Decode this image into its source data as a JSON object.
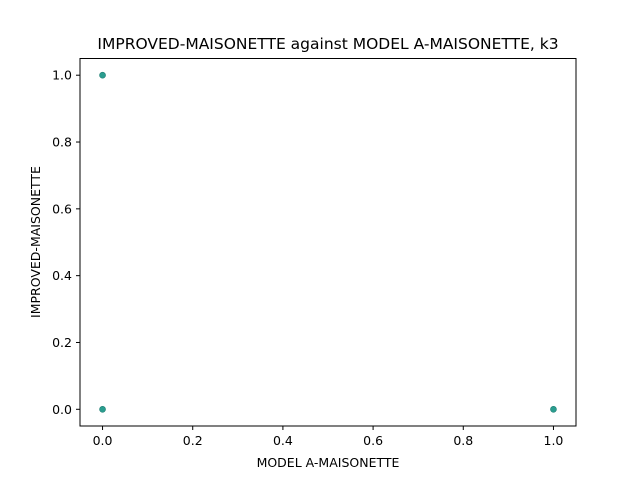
{
  "chart_data": {
    "type": "scatter",
    "title": "IMPROVED-MAISONETTE against MODEL A-MAISONETTE, k3",
    "xlabel": "MODEL A-MAISONETTE",
    "ylabel": "IMPROVED-MAISONETTE",
    "xlim": [
      -0.05,
      1.05
    ],
    "ylim": [
      -0.05,
      1.05
    ],
    "xticks": [
      0.0,
      0.2,
      0.4,
      0.6,
      0.8,
      1.0
    ],
    "yticks": [
      0.0,
      0.2,
      0.4,
      0.6,
      0.8,
      1.0
    ],
    "xtick_labels": [
      "0.0",
      "0.2",
      "0.4",
      "0.6",
      "0.8",
      "1.0"
    ],
    "ytick_labels": [
      "0.0",
      "0.2",
      "0.4",
      "0.6",
      "0.8",
      "1.0"
    ],
    "grid": false,
    "marker_color": "#2a9d8f",
    "points": [
      {
        "x": 0.0,
        "y": 1.0
      },
      {
        "x": 0.0,
        "y": 0.0
      },
      {
        "x": 1.0,
        "y": 0.0
      }
    ]
  }
}
